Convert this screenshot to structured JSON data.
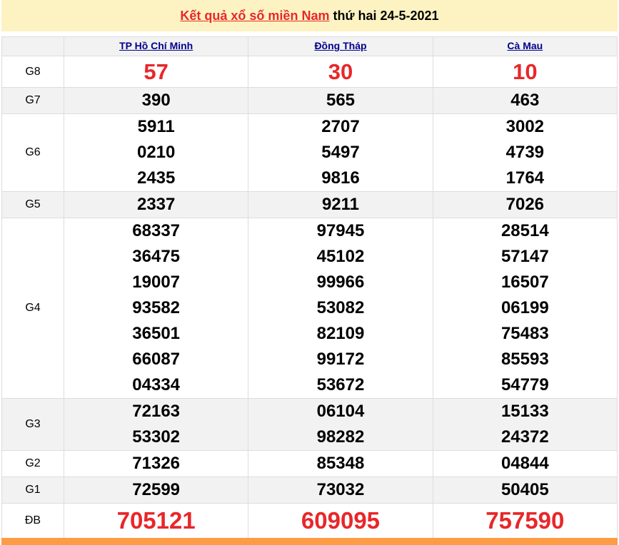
{
  "title": {
    "link": "Kết quả xổ số miền Nam",
    "rest": " thứ hai 24-5-2021"
  },
  "provinces": [
    "TP Hồ Chí Minh",
    "Đồng Tháp",
    "Cà Mau"
  ],
  "prizes": [
    {
      "label": "G8",
      "values": [
        [
          "57"
        ],
        [
          "30"
        ],
        [
          "10"
        ]
      ]
    },
    {
      "label": "G7",
      "values": [
        [
          "390"
        ],
        [
          "565"
        ],
        [
          "463"
        ]
      ]
    },
    {
      "label": "G6",
      "values": [
        [
          "5911",
          "0210",
          "2435"
        ],
        [
          "2707",
          "5497",
          "9816"
        ],
        [
          "3002",
          "4739",
          "1764"
        ]
      ]
    },
    {
      "label": "G5",
      "values": [
        [
          "2337"
        ],
        [
          "9211"
        ],
        [
          "7026"
        ]
      ]
    },
    {
      "label": "G4",
      "values": [
        [
          "68337",
          "36475",
          "19007",
          "93582",
          "36501",
          "66087",
          "04334"
        ],
        [
          "97945",
          "45102",
          "99966",
          "53082",
          "82109",
          "99172",
          "53672"
        ],
        [
          "28514",
          "57147",
          "16507",
          "06199",
          "75483",
          "85593",
          "54779"
        ]
      ]
    },
    {
      "label": "G3",
      "values": [
        [
          "72163",
          "53302"
        ],
        [
          "06104",
          "98282"
        ],
        [
          "15133",
          "24372"
        ]
      ]
    },
    {
      "label": "G2",
      "values": [
        [
          "71326"
        ],
        [
          "85348"
        ],
        [
          "04844"
        ]
      ]
    },
    {
      "label": "G1",
      "values": [
        [
          "72599"
        ],
        [
          "73032"
        ],
        [
          "50405"
        ]
      ]
    },
    {
      "label": "ĐB",
      "values": [
        [
          "705121"
        ],
        [
          "609095"
        ],
        [
          "757590"
        ]
      ]
    }
  ],
  "colors": {
    "red": "#e8272a",
    "header_bg": "#fdf3c2",
    "link": "#00008b",
    "footer": "#fd9c45"
  }
}
